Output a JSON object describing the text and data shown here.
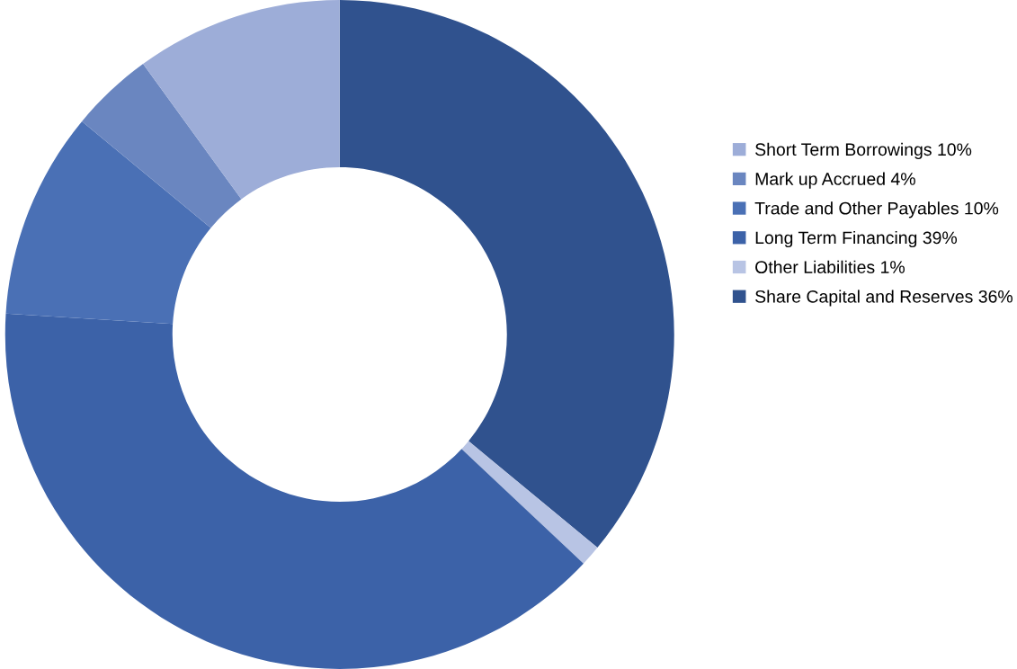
{
  "chart_data": {
    "type": "donut",
    "categories": [
      "Short Term Borrowings",
      "Mark up Accrued",
      "Trade and Other Payables",
      "Long Term Financing",
      "Other Liabilities",
      "Share Capital and Reserves"
    ],
    "values": [
      10,
      4,
      10,
      39,
      1,
      36
    ],
    "value_labels": [
      "10%",
      "4%",
      "10%",
      "39%",
      "1%",
      "36%"
    ],
    "colors": [
      "#9dadd8",
      "#6a86c0",
      "#4a70b5",
      "#3c62a8",
      "#b8c4e4",
      "#30528e"
    ],
    "legend": "right"
  }
}
